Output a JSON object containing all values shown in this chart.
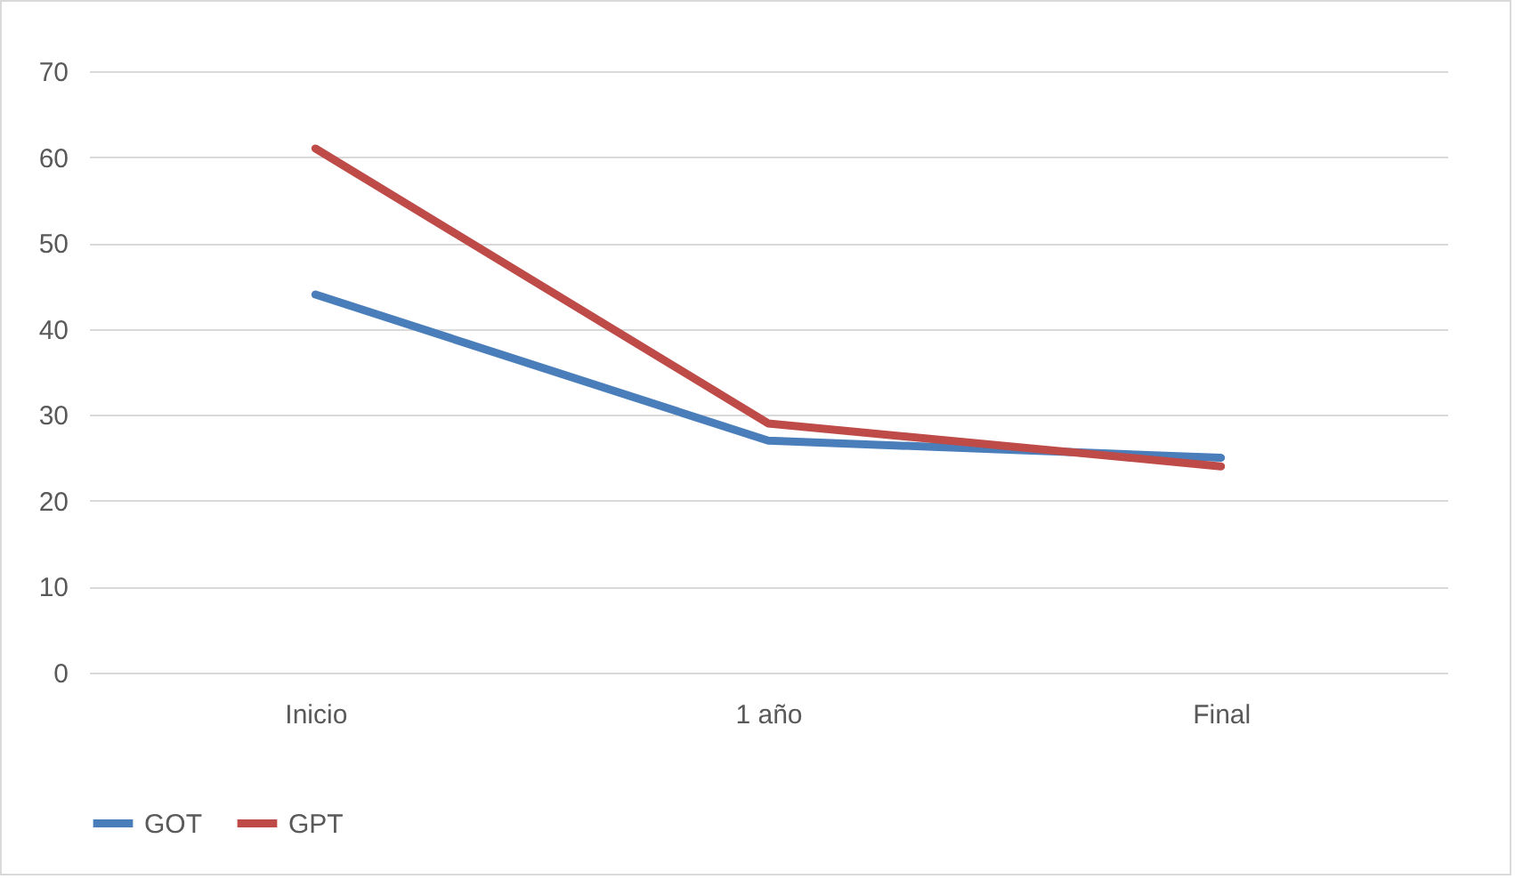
{
  "chart_data": {
    "type": "line",
    "categories": [
      "Inicio",
      "1 año",
      "Final"
    ],
    "series": [
      {
        "name": "GOT",
        "color": "#4a7ebb",
        "values": [
          44,
          27,
          25
        ]
      },
      {
        "name": "GPT",
        "color": "#be4b48",
        "values": [
          61,
          29,
          24
        ]
      }
    ],
    "ylim": [
      0,
      70
    ],
    "yticks": [
      0,
      10,
      20,
      30,
      40,
      50,
      60,
      70
    ],
    "grid": "y",
    "legend": "bottom",
    "marker": "none",
    "line_style": "solid"
  }
}
